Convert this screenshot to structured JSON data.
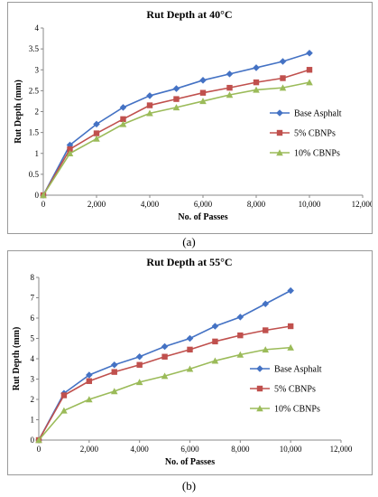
{
  "chart_data": [
    {
      "type": "line",
      "title": "Rut Depth at 40°C",
      "xlabel": "No. of Passes",
      "ylabel": "Rut Depth (mm)",
      "xlim": [
        0,
        12000
      ],
      "ylim": [
        0,
        4
      ],
      "xticks": [
        0,
        2000,
        4000,
        6000,
        8000,
        10000,
        12000
      ],
      "xtick_labels": [
        "0",
        "2,000",
        "4,000",
        "6,000",
        "8,000",
        "10,000",
        "12,000"
      ],
      "yticks": [
        0,
        0.5,
        1,
        1.5,
        2,
        2.5,
        3,
        3.5,
        4
      ],
      "ytick_labels": [
        "0",
        "0.5",
        "1",
        "1.5",
        "2",
        "2.5",
        "3",
        "3.5",
        "4"
      ],
      "grid": false,
      "legend_position": "right",
      "x": [
        0,
        1000,
        2000,
        3000,
        4000,
        5000,
        6000,
        7000,
        8000,
        9000,
        10000
      ],
      "series": [
        {
          "name": "Base Asphalt",
          "color": "#4472c4",
          "marker": "diamond",
          "values": [
            0,
            1.2,
            1.7,
            2.1,
            2.38,
            2.55,
            2.75,
            2.9,
            3.05,
            3.2,
            3.4
          ]
        },
        {
          "name": "5% CBNPs",
          "color": "#c0504d",
          "marker": "square",
          "values": [
            0,
            1.1,
            1.48,
            1.82,
            2.15,
            2.3,
            2.45,
            2.57,
            2.7,
            2.8,
            3.0
          ]
        },
        {
          "name": "10% CBNPs",
          "color": "#9bbb59",
          "marker": "triangle",
          "values": [
            0,
            1.0,
            1.35,
            1.7,
            1.96,
            2.1,
            2.25,
            2.4,
            2.52,
            2.57,
            2.7
          ]
        }
      ]
    },
    {
      "type": "line",
      "title": "Rut Depth at 55°C",
      "xlabel": "No. of Passes",
      "ylabel": "Rut Depth (mm)",
      "xlim": [
        0,
        12000
      ],
      "ylim": [
        0,
        8
      ],
      "xticks": [
        0,
        2000,
        4000,
        6000,
        8000,
        10000,
        12000
      ],
      "xtick_labels": [
        "0",
        "2,000",
        "4,000",
        "6,000",
        "8,000",
        "10,000",
        "12,000"
      ],
      "yticks": [
        0,
        1,
        2,
        3,
        4,
        5,
        6,
        7,
        8
      ],
      "ytick_labels": [
        "0",
        "1",
        "2",
        "3",
        "4",
        "5",
        "6",
        "7",
        "8"
      ],
      "grid": false,
      "legend_position": "right",
      "x": [
        0,
        1000,
        2000,
        3000,
        4000,
        5000,
        6000,
        7000,
        8000,
        9000,
        10000
      ],
      "series": [
        {
          "name": "Base Asphalt",
          "color": "#4472c4",
          "marker": "diamond",
          "values": [
            0,
            2.3,
            3.2,
            3.7,
            4.1,
            4.6,
            5.0,
            5.6,
            6.05,
            6.7,
            7.35
          ]
        },
        {
          "name": "5% CBNPs",
          "color": "#c0504d",
          "marker": "square",
          "values": [
            0,
            2.2,
            2.9,
            3.35,
            3.7,
            4.1,
            4.45,
            4.85,
            5.15,
            5.4,
            5.6
          ]
        },
        {
          "name": "10% CBNPs",
          "color": "#9bbb59",
          "marker": "triangle",
          "values": [
            0,
            1.45,
            2.0,
            2.4,
            2.85,
            3.15,
            3.5,
            3.9,
            4.2,
            4.45,
            4.55
          ]
        }
      ]
    }
  ],
  "captions": {
    "a": "(a)",
    "b": "(b)"
  }
}
